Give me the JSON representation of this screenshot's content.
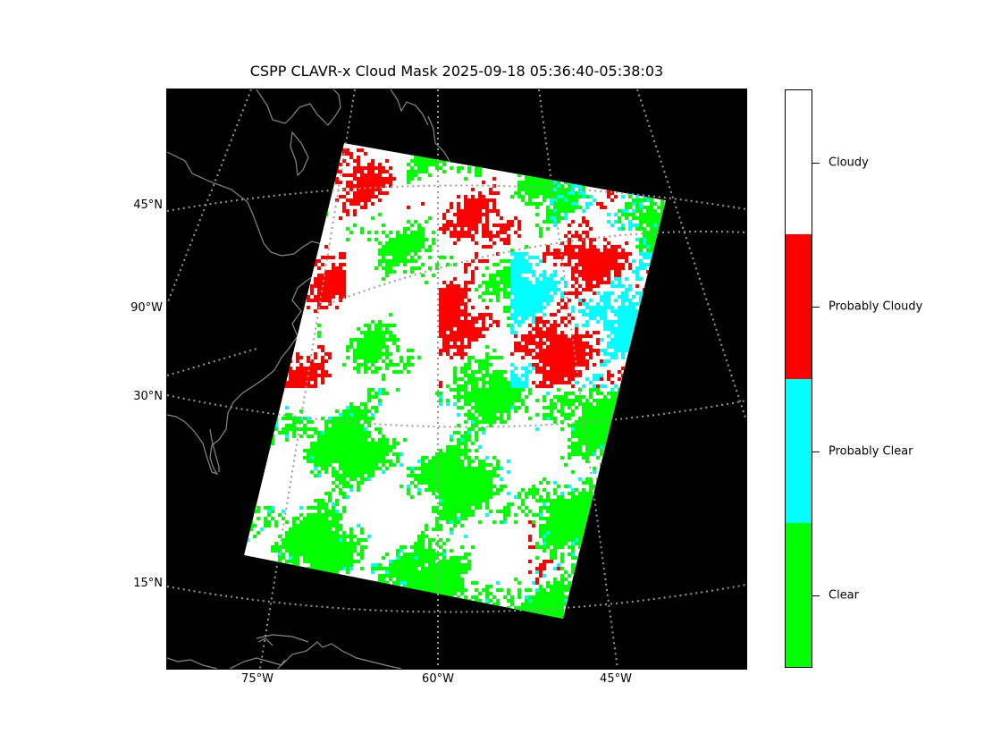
{
  "title": "CSPP CLAVR-x Cloud Mask 2025-09-18 05:36:40-05:38:03",
  "map": {
    "projection": "polar stereographic (North America sector)",
    "background_color": "#000000",
    "coastline_color": "#888888",
    "graticule_color": "#999999",
    "lat_labels": [
      "45°N",
      "90°W",
      "30°N",
      "15°N"
    ],
    "lon_labels": [
      "75°W",
      "60°W",
      "45°W"
    ]
  },
  "colorbar": {
    "classes": [
      {
        "label": "Cloudy",
        "color": "#ffffff"
      },
      {
        "label": "Probably Cloudy",
        "color": "#ff0000"
      },
      {
        "label": "Probably Clear",
        "color": "#00ffff"
      },
      {
        "label": "Clear",
        "color": "#00ff00"
      }
    ]
  }
}
